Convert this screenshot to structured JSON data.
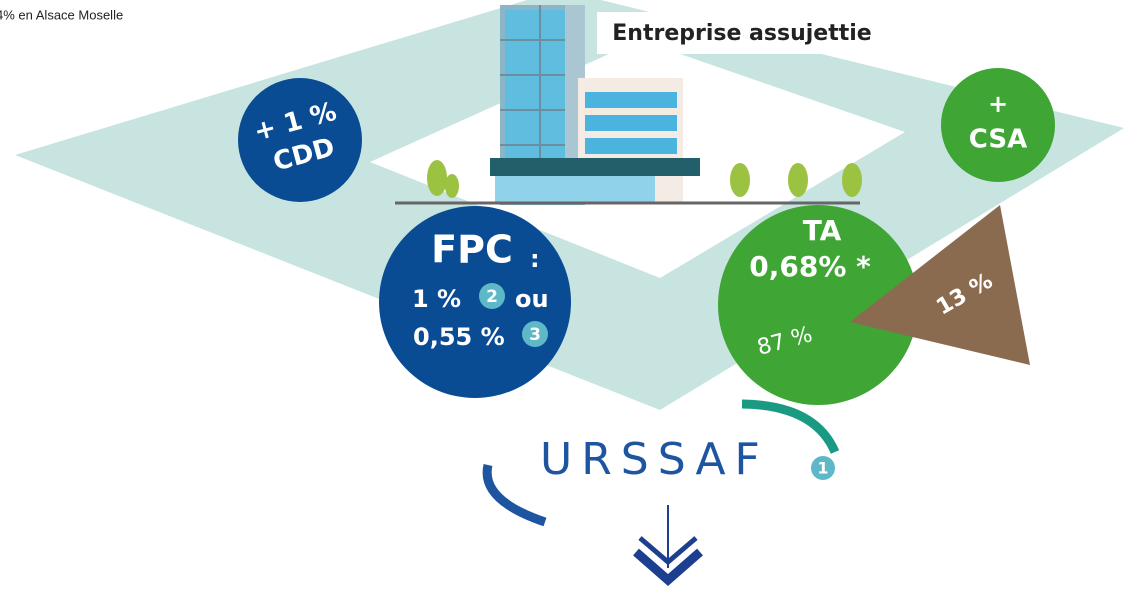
{
  "note": "4% en Alsace Moselle",
  "building": {
    "label": "Entreprise assujettie"
  },
  "cdd": {
    "plus": "+ 1 %",
    "label": "CDD"
  },
  "csa": {
    "plus": "+",
    "label": "CSA"
  },
  "fpc": {
    "title": "FPC",
    "colon": ":",
    "line1": "1 %",
    "badge1": "2",
    "or": "ou",
    "line2": "0,55 %",
    "badge2": "3"
  },
  "ta": {
    "title": "TA",
    "rate": "0,68% *",
    "share_main": "87 %",
    "share_other": "13 %"
  },
  "urssaf": {
    "label": "URSSAF",
    "badge": "1"
  }
}
